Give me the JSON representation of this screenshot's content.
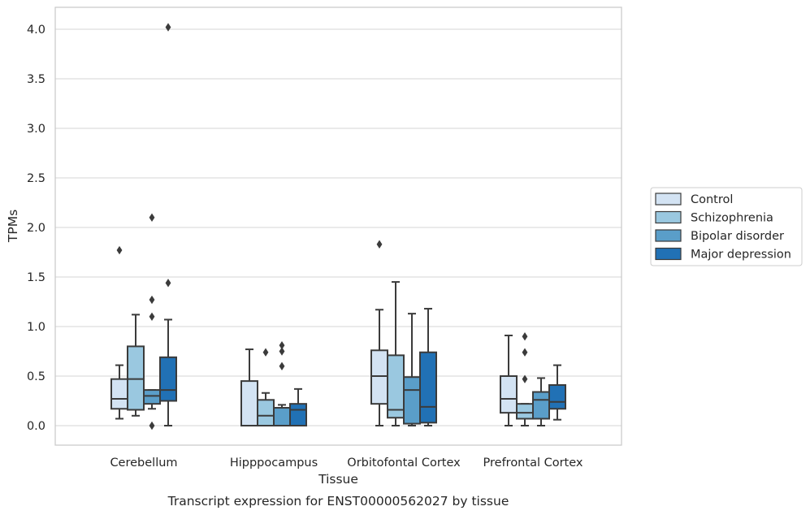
{
  "chart_data": {
    "type": "box",
    "title": "",
    "xlabel": "Tissue",
    "ylabel": "TPMs",
    "caption": "Transcript expression for ENST00000562027 by tissue",
    "ylim": [
      -0.2,
      4.22
    ],
    "yticks": [
      0.0,
      0.5,
      1.0,
      1.5,
      2.0,
      2.5,
      3.0,
      3.5,
      4.0
    ],
    "ytick_labels": [
      "0.0",
      "0.5",
      "1.0",
      "1.5",
      "2.0",
      "2.5",
      "3.0",
      "3.5",
      "4.0"
    ],
    "grid": "horizontal",
    "legend_position": "right",
    "categories": [
      "Cerebellum",
      "Hipppocampus",
      "Orbitofontal Cortex",
      "Prefrontal Cortex"
    ],
    "series": [
      {
        "name": "Control",
        "color": "#d3e3f3",
        "boxes": [
          {
            "whislo": 0.07,
            "q1": 0.17,
            "med": 0.27,
            "q3": 0.47,
            "whishi": 0.61,
            "fliers": [
              1.77
            ]
          },
          {
            "whislo": 0.0,
            "q1": 0.0,
            "med": 0.0,
            "q3": 0.45,
            "whishi": 0.77,
            "fliers": []
          },
          {
            "whislo": 0.0,
            "q1": 0.22,
            "med": 0.5,
            "q3": 0.76,
            "whishi": 1.17,
            "fliers": [
              1.83
            ]
          },
          {
            "whislo": 0.0,
            "q1": 0.13,
            "med": 0.27,
            "q3": 0.5,
            "whishi": 0.91,
            "fliers": []
          }
        ]
      },
      {
        "name": "Schizophrenia",
        "color": "#9ac8e0",
        "boxes": [
          {
            "whislo": 0.1,
            "q1": 0.16,
            "med": 0.47,
            "q3": 0.8,
            "whishi": 1.12,
            "fliers": []
          },
          {
            "whislo": 0.0,
            "q1": 0.0,
            "med": 0.1,
            "q3": 0.26,
            "whishi": 0.33,
            "fliers": [
              0.74
            ]
          },
          {
            "whislo": 0.0,
            "q1": 0.08,
            "med": 0.16,
            "q3": 0.71,
            "whishi": 1.45,
            "fliers": []
          },
          {
            "whislo": 0.0,
            "q1": 0.07,
            "med": 0.13,
            "q3": 0.22,
            "whishi": 0.22,
            "fliers": [
              0.47,
              0.74,
              0.9
            ]
          }
        ]
      },
      {
        "name": "Bipolar disorder",
        "color": "#5a9ec9",
        "boxes": [
          {
            "whislo": 0.17,
            "q1": 0.22,
            "med": 0.3,
            "q3": 0.36,
            "whishi": 0.36,
            "fliers": [
              0.0,
              1.1,
              1.27,
              2.1
            ]
          },
          {
            "whislo": 0.0,
            "q1": 0.0,
            "med": 0.18,
            "q3": 0.18,
            "whishi": 0.21,
            "fliers": [
              0.6,
              0.75,
              0.81
            ]
          },
          {
            "whislo": 0.0,
            "q1": 0.02,
            "med": 0.36,
            "q3": 0.49,
            "whishi": 1.13,
            "fliers": []
          },
          {
            "whislo": 0.0,
            "q1": 0.07,
            "med": 0.26,
            "q3": 0.34,
            "whishi": 0.48,
            "fliers": []
          }
        ]
      },
      {
        "name": "Major depression",
        "color": "#2171b5",
        "boxes": [
          {
            "whislo": 0.0,
            "q1": 0.25,
            "med": 0.36,
            "q3": 0.69,
            "whishi": 1.07,
            "fliers": [
              1.44,
              4.02
            ]
          },
          {
            "whislo": 0.0,
            "q1": 0.0,
            "med": 0.16,
            "q3": 0.22,
            "whishi": 0.37,
            "fliers": []
          },
          {
            "whislo": 0.0,
            "q1": 0.03,
            "med": 0.19,
            "q3": 0.74,
            "whishi": 1.18,
            "fliers": []
          },
          {
            "whislo": 0.06,
            "q1": 0.17,
            "med": 0.24,
            "q3": 0.41,
            "whishi": 0.61,
            "fliers": []
          }
        ]
      }
    ]
  }
}
